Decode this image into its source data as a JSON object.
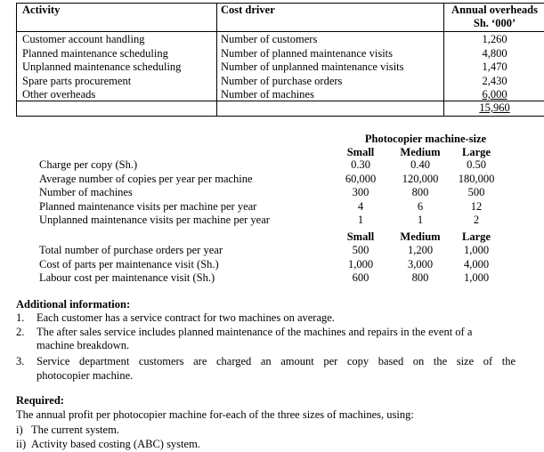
{
  "overheads_table": {
    "headers": {
      "activity": "Activity",
      "cost_driver": "Cost driver",
      "overheads_line1": "Annual overheads",
      "overheads_line2": "Sh. ‘000’"
    },
    "rows": [
      {
        "activity": "Customer account handling",
        "driver": "Number of customers",
        "amount": "1,260"
      },
      {
        "activity": "Planned maintenance scheduling",
        "driver": "Number of planned maintenance visits",
        "amount": "4,800"
      },
      {
        "activity": "Unplanned maintenance scheduling",
        "driver": "Number of unplanned maintenance visits",
        "amount": "1,470"
      },
      {
        "activity": "Spare parts procurement",
        "driver": "Number of purchase orders",
        "amount": "2,430"
      },
      {
        "activity": "Other overheads",
        "driver": "Number of machines",
        "amount": "6,000"
      }
    ],
    "total": "15,960"
  },
  "machine_table": {
    "title": "Photocopier machine-size",
    "columns": [
      "Small",
      "Medium",
      "Large"
    ],
    "rows": [
      {
        "label": "Charge per copy (Sh.)",
        "values": [
          "0.30",
          "0.40",
          "0.50"
        ]
      },
      {
        "label": "Average number of copies per year per machine",
        "values": [
          "60,000",
          "120,000",
          "180,000"
        ]
      },
      {
        "label": "Number of machines",
        "values": [
          "300",
          "800",
          "500"
        ]
      },
      {
        "label": "Planned maintenance visits per machine per year",
        "values": [
          "4",
          "6",
          "12"
        ]
      },
      {
        "label": "Unplanned maintenance visits per machine per year",
        "values": [
          "1",
          "1",
          "2"
        ]
      }
    ],
    "columns2": [
      "Small",
      "Medium",
      "Large"
    ],
    "rows2": [
      {
        "label": "Total number of purchase orders per year",
        "values": [
          "500",
          "1,200",
          "1,000"
        ]
      },
      {
        "label": "Cost of parts per maintenance visit (Sh.)",
        "values": [
          "1,000",
          "3,000",
          "4,000"
        ]
      },
      {
        "label": "Labour cost per maintenance visit (Sh.)",
        "values": [
          "600",
          "800",
          "1,000"
        ]
      }
    ]
  },
  "additional": {
    "heading": "Additional information:",
    "items": [
      {
        "num": "1.",
        "line1": "Each customer has a service contract for two machines on average."
      },
      {
        "num": "2.",
        "line1": "The after sales service includes planned maintenance of the machines and repairs in the event of a",
        "line2": "machine breakdown."
      },
      {
        "num": "3.",
        "line1": "Service department customers are charged an amount per copy based on the size of the",
        "line2": "photocopier machine."
      }
    ]
  },
  "required": {
    "heading": "Required:",
    "text": "The annual profit per photocopier machine for-each of the three sizes of machines, using:",
    "items": [
      {
        "num": "i)",
        "text": "The current system."
      },
      {
        "num": "ii)",
        "text": "Activity based costing (ABC) system."
      }
    ]
  }
}
